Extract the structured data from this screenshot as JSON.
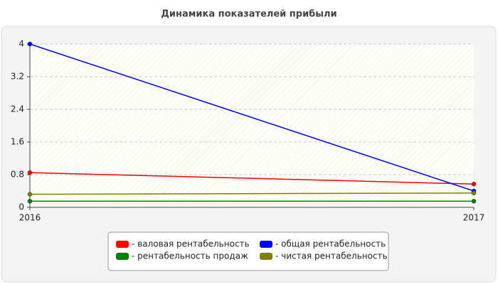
{
  "chart_data": {
    "type": "line",
    "title": "Динамика показателей прибыли",
    "categories": [
      "2016",
      "2017"
    ],
    "series": [
      {
        "name": "- валовая рентабельность",
        "color": "#ff0000",
        "values": [
          0.85,
          0.57
        ]
      },
      {
        "name": "- общая рентабельность",
        "color": "#0000ff",
        "values": [
          4,
          0.4
        ]
      },
      {
        "name": "- рентабельность продаж",
        "color": "#008000",
        "values": [
          0.15,
          0.15
        ]
      },
      {
        "name": "- чистая рентабельность",
        "color": "#808000",
        "values": [
          0.32,
          0.35
        ]
      }
    ],
    "ylim": [
      0,
      4
    ],
    "yticks": [
      0,
      0.8,
      1.6,
      2.4,
      3.2,
      4
    ],
    "grid": true
  }
}
